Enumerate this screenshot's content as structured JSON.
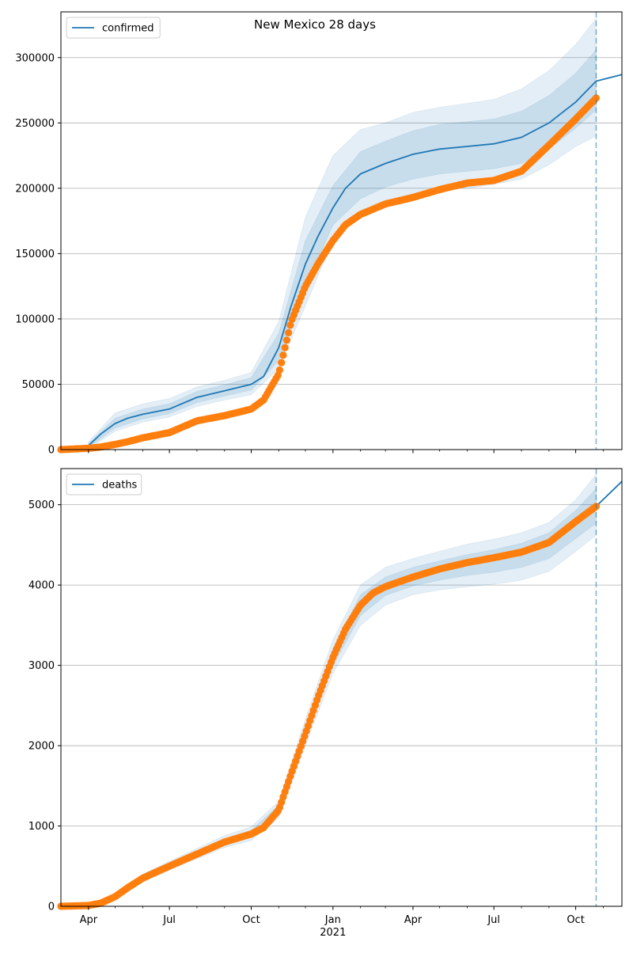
{
  "figure": {
    "title": "New Mexico 28 days"
  },
  "colors": {
    "model": "#1f77b4",
    "observed": "#ff7f0e",
    "band": "#1f77b4",
    "grid": "#b0b0b0"
  },
  "chart_data": [
    {
      "type": "line",
      "title": "",
      "xlabel": "",
      "ylabel": "",
      "legend": {
        "labels": [
          "confirmed"
        ],
        "placement": "top-left"
      },
      "grid": "y",
      "x_range": [
        "2020-03-01",
        "2021-11-22"
      ],
      "ylim": [
        0,
        335000
      ],
      "y_ticks": [
        0,
        50000,
        100000,
        150000,
        200000,
        250000,
        300000
      ],
      "y_tick_labels": [
        "0",
        "50000",
        "100000",
        "150000",
        "200000",
        "250000",
        "300000"
      ],
      "forecast_start": "2021-10-24",
      "series": [
        {
          "name": "confirmed",
          "role": "model fit and forecast",
          "x": [
            "2020-03-01",
            "2020-03-25",
            "2020-04-01",
            "2020-04-15",
            "2020-05-01",
            "2020-05-15",
            "2020-06-01",
            "2020-07-01",
            "2020-08-01",
            "2020-09-01",
            "2020-10-01",
            "2020-10-15",
            "2020-11-01",
            "2020-11-15",
            "2020-12-01",
            "2020-12-15",
            "2021-01-01",
            "2021-01-15",
            "2021-02-01",
            "2021-03-01",
            "2021-04-01",
            "2021-05-01",
            "2021-06-01",
            "2021-07-01",
            "2021-08-01",
            "2021-09-01",
            "2021-10-01",
            "2021-10-24",
            "2021-11-22"
          ],
          "values": [
            0,
            0,
            3000,
            12000,
            20000,
            24000,
            27000,
            31000,
            40000,
            45000,
            50000,
            56000,
            78000,
            110000,
            142000,
            163000,
            185000,
            200000,
            211000,
            219000,
            226000,
            230000,
            232000,
            234000,
            239000,
            250000,
            266000,
            282000,
            287000
          ]
        },
        {
          "name": "observed",
          "role": "reported cumulative counts (markers)",
          "x": [
            "2020-03-01",
            "2020-04-01",
            "2020-04-15",
            "2020-05-01",
            "2020-05-15",
            "2020-06-01",
            "2020-07-01",
            "2020-08-01",
            "2020-09-01",
            "2020-10-01",
            "2020-10-15",
            "2020-11-01",
            "2020-11-15",
            "2020-12-01",
            "2020-12-15",
            "2021-01-01",
            "2021-01-15",
            "2021-02-01",
            "2021-03-01",
            "2021-04-01",
            "2021-05-01",
            "2021-06-01",
            "2021-07-01",
            "2021-08-01",
            "2021-09-01",
            "2021-10-01",
            "2021-10-24"
          ],
          "values": [
            0,
            1000,
            2000,
            4000,
            6000,
            9000,
            13000,
            22000,
            26000,
            31000,
            38000,
            58000,
            98000,
            125000,
            142000,
            160000,
            172000,
            180000,
            188000,
            193000,
            199000,
            204000,
            206000,
            213000,
            233000,
            253000,
            269000
          ]
        }
      ],
      "bands": [
        {
          "x": [
            "2020-04-01",
            "2020-05-01",
            "2020-06-01",
            "2020-07-01",
            "2020-08-01",
            "2020-09-01",
            "2020-10-01",
            "2020-11-01",
            "2020-12-01",
            "2021-01-01",
            "2021-02-01",
            "2021-03-01",
            "2021-04-01",
            "2021-05-01",
            "2021-06-01",
            "2021-07-01",
            "2021-08-01",
            "2021-09-01",
            "2021-10-01",
            "2021-10-24"
          ],
          "lower": [
            500,
            14000,
            21000,
            25000,
            33000,
            38000,
            42000,
            62000,
            110000,
            160000,
            180000,
            190000,
            196000,
            199000,
            200000,
            203000,
            207000,
            218000,
            232000,
            240000
          ],
          "upper": [
            6000,
            28000,
            35000,
            39000,
            48000,
            53000,
            59000,
            98000,
            178000,
            225000,
            245000,
            250000,
            258000,
            262000,
            265000,
            268000,
            276000,
            290000,
            310000,
            330000
          ]
        },
        {
          "x": [
            "2020-04-01",
            "2020-05-01",
            "2020-06-01",
            "2020-07-01",
            "2020-08-01",
            "2020-09-01",
            "2020-10-01",
            "2020-11-01",
            "2020-12-01",
            "2021-01-01",
            "2021-02-01",
            "2021-03-01",
            "2021-04-01",
            "2021-05-01",
            "2021-06-01",
            "2021-07-01",
            "2021-08-01",
            "2021-09-01",
            "2021-10-01",
            "2021-10-24"
          ],
          "lower": [
            1500,
            16500,
            23500,
            27500,
            36000,
            41000,
            45500,
            68000,
            124000,
            172000,
            192000,
            201000,
            207000,
            211000,
            213000,
            215000,
            219000,
            230000,
            246000,
            260000
          ],
          "upper": [
            4800,
            24000,
            31000,
            35000,
            44500,
            49500,
            55000,
            89000,
            160000,
            202000,
            228000,
            236000,
            244000,
            249000,
            251000,
            253000,
            259000,
            271000,
            288000,
            306000
          ]
        }
      ],
      "x_ticks": [
        "Apr",
        "Jul",
        "Oct",
        "Jan",
        "Apr",
        "Jul",
        "Oct"
      ]
    },
    {
      "type": "line",
      "title": "",
      "xlabel": "",
      "ylabel": "",
      "legend": {
        "labels": [
          "deaths"
        ],
        "placement": "top-left"
      },
      "grid": "y",
      "x_range": [
        "2020-03-01",
        "2021-11-22"
      ],
      "ylim": [
        0,
        5450
      ],
      "y_ticks": [
        0,
        1000,
        2000,
        3000,
        4000,
        5000
      ],
      "y_tick_labels": [
        "0",
        "1000",
        "2000",
        "3000",
        "4000",
        "5000"
      ],
      "forecast_start": "2021-10-24",
      "series": [
        {
          "name": "deaths",
          "role": "model fit and forecast",
          "x": [
            "2020-03-01",
            "2020-04-01",
            "2020-04-15",
            "2020-05-01",
            "2020-05-15",
            "2020-06-01",
            "2020-07-01",
            "2020-08-01",
            "2020-09-01",
            "2020-10-01",
            "2020-10-15",
            "2020-11-01",
            "2020-11-15",
            "2020-12-01",
            "2020-12-15",
            "2021-01-01",
            "2021-01-15",
            "2021-02-01",
            "2021-02-15",
            "2021-03-01",
            "2021-04-01",
            "2021-05-01",
            "2021-06-01",
            "2021-07-01",
            "2021-08-01",
            "2021-09-01",
            "2021-10-01",
            "2021-10-24",
            "2021-11-22"
          ],
          "values": [
            0,
            10,
            40,
            120,
            230,
            350,
            500,
            650,
            800,
            900,
            980,
            1200,
            1650,
            2150,
            2600,
            3100,
            3450,
            3750,
            3900,
            3980,
            4100,
            4200,
            4280,
            4340,
            4410,
            4530,
            4790,
            4980,
            5290
          ]
        },
        {
          "name": "observed",
          "role": "reported cumulative deaths (markers)",
          "x": [
            "2020-03-01",
            "2020-04-01",
            "2020-04-15",
            "2020-05-01",
            "2020-05-15",
            "2020-06-01",
            "2020-07-01",
            "2020-08-01",
            "2020-09-01",
            "2020-10-01",
            "2020-10-15",
            "2020-11-01",
            "2020-11-15",
            "2020-12-01",
            "2020-12-15",
            "2021-01-01",
            "2021-01-15",
            "2021-02-01",
            "2021-02-15",
            "2021-03-01",
            "2021-04-01",
            "2021-05-01",
            "2021-06-01",
            "2021-07-01",
            "2021-08-01",
            "2021-09-01",
            "2021-10-01",
            "2021-10-24"
          ],
          "values": [
            0,
            10,
            40,
            120,
            230,
            350,
            500,
            650,
            800,
            900,
            980,
            1200,
            1650,
            2150,
            2600,
            3100,
            3450,
            3750,
            3900,
            3980,
            4100,
            4200,
            4280,
            4340,
            4410,
            4530,
            4790,
            4980
          ]
        }
      ],
      "bands": [
        {
          "x": [
            "2020-04-01",
            "2020-05-01",
            "2020-06-01",
            "2020-07-01",
            "2020-08-01",
            "2020-09-01",
            "2020-10-01",
            "2020-11-01",
            "2020-12-01",
            "2021-01-01",
            "2021-02-01",
            "2021-03-01",
            "2021-04-01",
            "2021-05-01",
            "2021-06-01",
            "2021-07-01",
            "2021-08-01",
            "2021-09-01",
            "2021-10-01",
            "2021-10-24"
          ],
          "lower": [
            0,
            100,
            310,
            450,
            590,
            730,
            820,
            1100,
            2000,
            2900,
            3500,
            3750,
            3880,
            3940,
            3980,
            4010,
            4060,
            4170,
            4420,
            4620
          ],
          "upper": [
            20,
            150,
            400,
            560,
            720,
            880,
            990,
            1310,
            2330,
            3320,
            4000,
            4220,
            4330,
            4420,
            4510,
            4570,
            4650,
            4780,
            5060,
            5380
          ]
        },
        {
          "x": [
            "2020-04-01",
            "2020-05-01",
            "2020-06-01",
            "2020-07-01",
            "2020-08-01",
            "2020-09-01",
            "2020-10-01",
            "2020-11-01",
            "2020-12-01",
            "2021-01-01",
            "2021-02-01",
            "2021-03-01",
            "2021-04-01",
            "2021-05-01",
            "2021-06-01",
            "2021-07-01",
            "2021-08-01",
            "2021-09-01",
            "2021-10-01",
            "2021-10-24"
          ],
          "lower": [
            3,
            108,
            330,
            475,
            620,
            765,
            860,
            1150,
            2080,
            3000,
            3620,
            3870,
            3990,
            4060,
            4120,
            4160,
            4220,
            4330,
            4580,
            4770
          ],
          "upper": [
            15,
            135,
            375,
            530,
            685,
            840,
            945,
            1260,
            2240,
            3210,
            3880,
            4100,
            4220,
            4300,
            4380,
            4440,
            4520,
            4650,
            4930,
            5200
          ]
        }
      ],
      "x_ticks": [
        "Apr",
        "Jul",
        "Oct",
        "Jan",
        "Apr",
        "Jul",
        "Oct"
      ],
      "x_year_label": "2021"
    }
  ]
}
